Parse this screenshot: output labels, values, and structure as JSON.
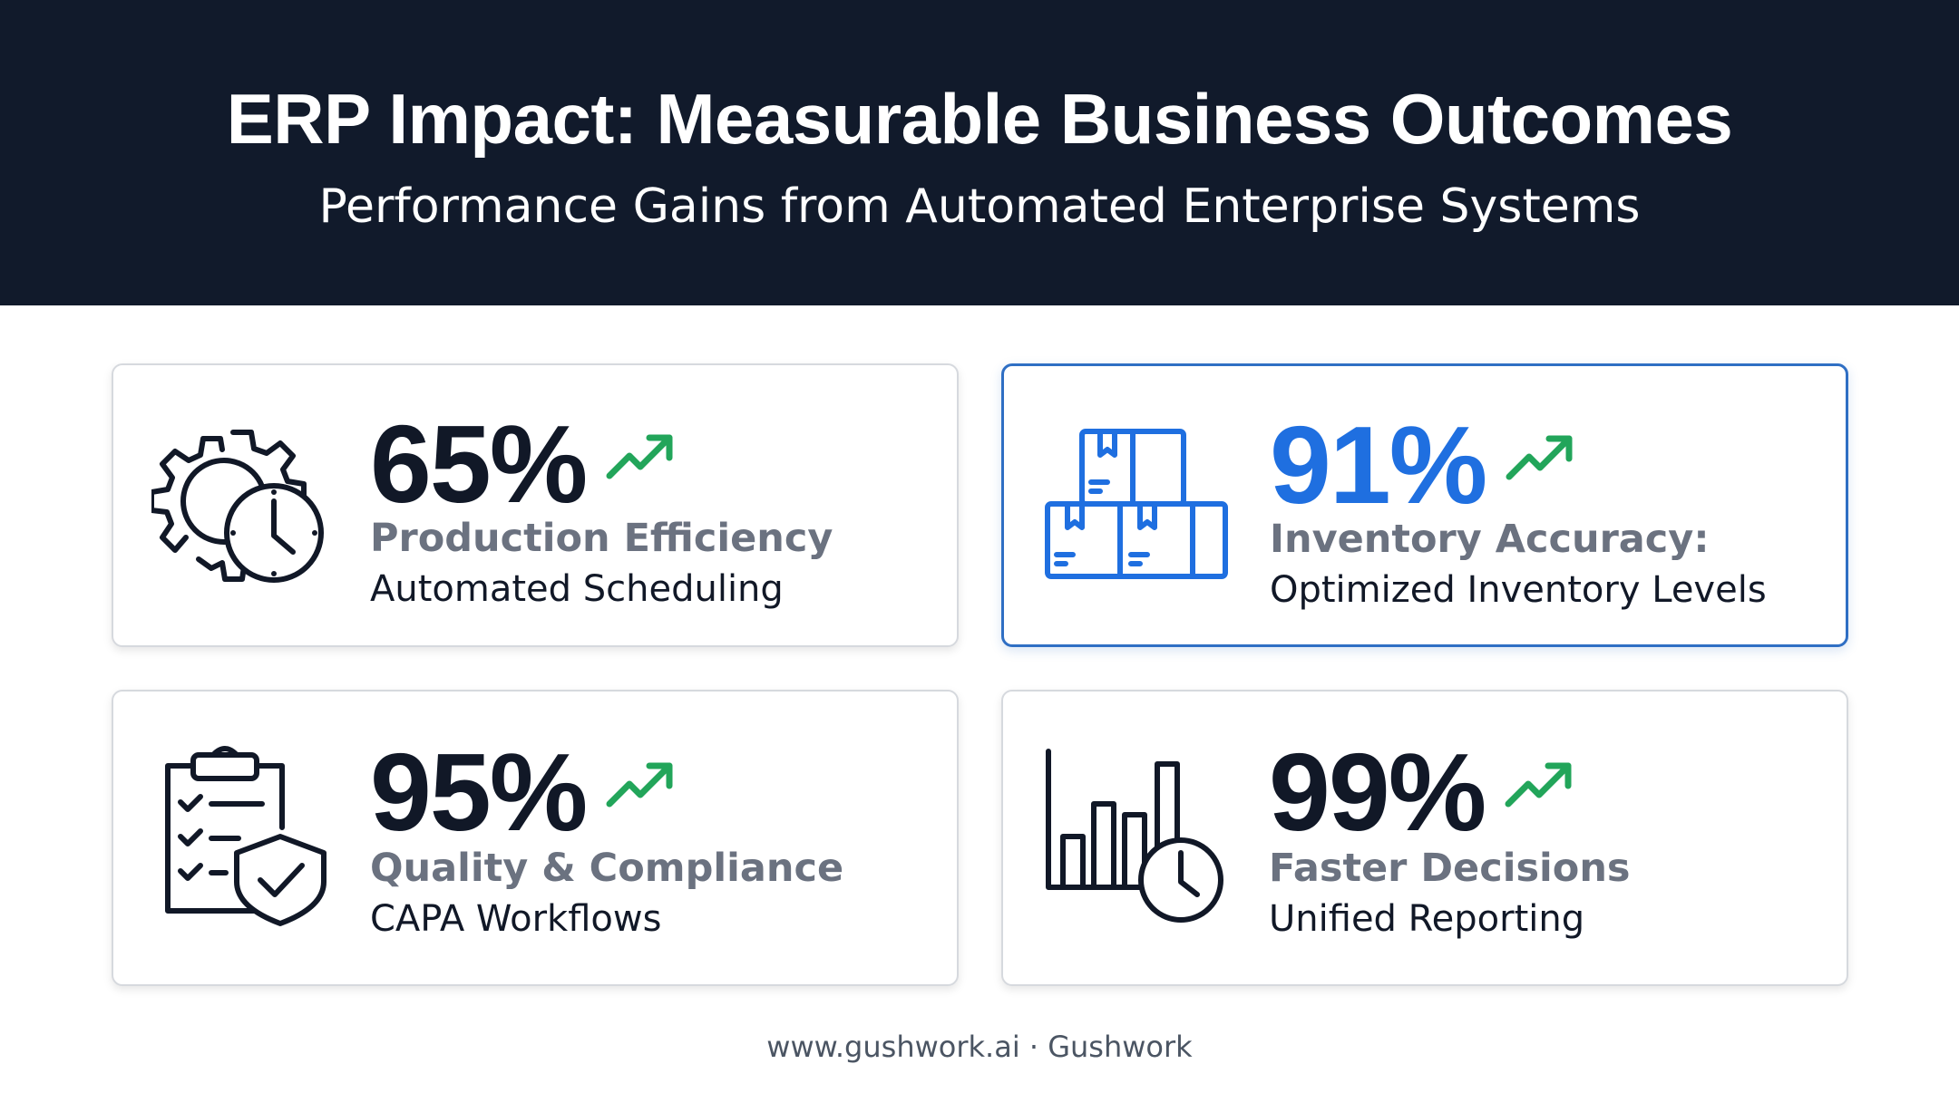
{
  "header": {
    "title": "ERP Impact: Measurable Business Outcomes",
    "subtitle": "Performance Gains from Automated Enterprise Systems"
  },
  "cards": [
    {
      "value": "65%",
      "label": "Production Efficiency",
      "sublabel": "Automated Scheduling",
      "icon": "gear-clock-icon",
      "trend_icon": "trend-up-icon"
    },
    {
      "value": "91%",
      "label": "Inventory Accuracy:",
      "sublabel": "Optimized Inventory Levels",
      "icon": "boxes-icon",
      "trend_icon": "trend-up-icon"
    },
    {
      "value": "95%",
      "label": "Quality & Compliance",
      "sublabel": "CAPA Workflows",
      "icon": "checklist-shield-icon",
      "trend_icon": "trend-up-icon"
    },
    {
      "value": "99%",
      "label": "Faster Decisions",
      "sublabel": "Unified Reporting",
      "icon": "bar-chart-clock-icon",
      "trend_icon": "trend-up-icon"
    }
  ],
  "footer": {
    "text": "www.gushwork.ai · Gushwork"
  },
  "colors": {
    "header_bg": "#111a2b",
    "accent_blue": "#1f6fe0",
    "trend_green": "#22a55a",
    "label_gray": "#6b7280"
  }
}
